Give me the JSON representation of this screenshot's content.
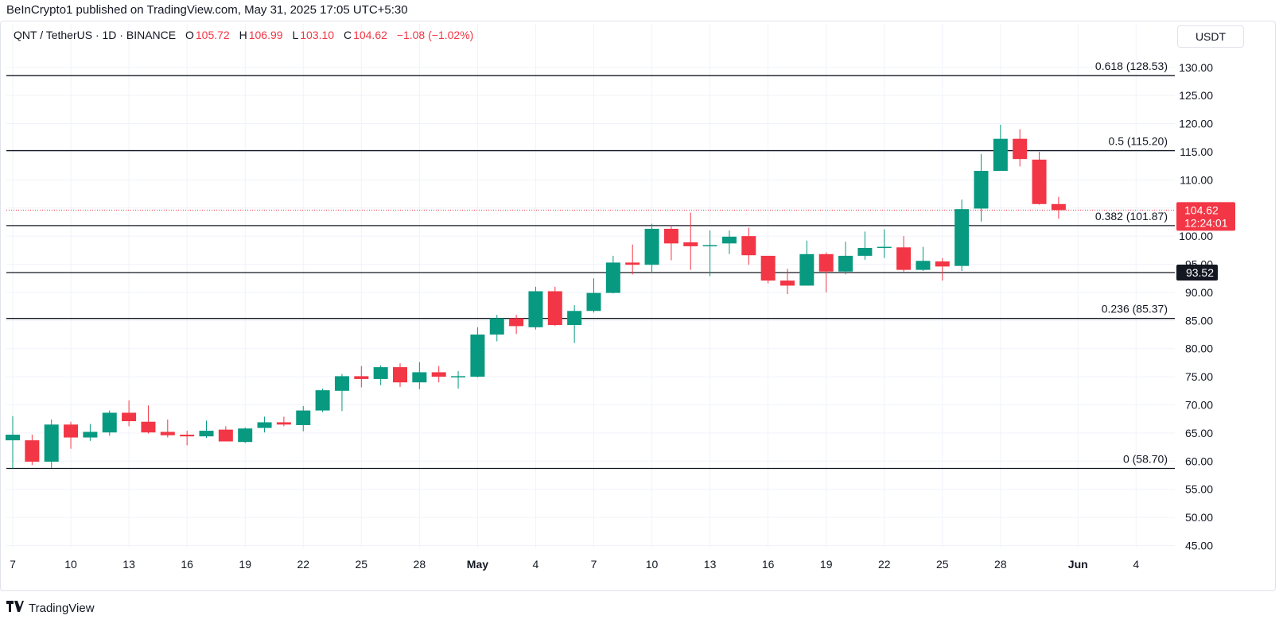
{
  "header": {
    "published_by": "BeInCrypto1 published on TradingView.com, May 31, 2025 17:05 UTC+5:30"
  },
  "symbol": {
    "title": "QNT / TetherUS · 1D · BINANCE",
    "o_label": "O",
    "o_value": "105.72",
    "h_label": "H",
    "h_value": "106.99",
    "l_label": "L",
    "l_value": "103.10",
    "c_label": "C",
    "c_value": "104.62",
    "change": "−1.08 (−1.02%)"
  },
  "currency_button": "USDT",
  "footer": {
    "logo_text": "TradingView"
  },
  "colors": {
    "up": "#089981",
    "down": "#f23645",
    "grid": "#f0f3fa",
    "level": "#131722",
    "price_tag": "#f23645",
    "dark_tag": "#131722"
  },
  "chart_data": {
    "type": "candlestick",
    "title": "QNT / TetherUS · 1D · BINANCE",
    "ylim": [
      44.5,
      133.5
    ],
    "y_ticks": [
      "130.00",
      "125.00",
      "120.00",
      "115.00",
      "110.00",
      "105.00",
      "100.00",
      "95.00",
      "90.00",
      "85.00",
      "80.00",
      "75.00",
      "70.00",
      "65.00",
      "60.00",
      "55.00",
      "50.00",
      "45.00"
    ],
    "x_ticks": [
      {
        "label": "7",
        "index": 0
      },
      {
        "label": "10",
        "index": 3
      },
      {
        "label": "13",
        "index": 6
      },
      {
        "label": "16",
        "index": 9
      },
      {
        "label": "19",
        "index": 12
      },
      {
        "label": "22",
        "index": 15
      },
      {
        "label": "25",
        "index": 18
      },
      {
        "label": "28",
        "index": 21
      },
      {
        "label": "May",
        "index": 24,
        "bold": true
      },
      {
        "label": "4",
        "index": 27
      },
      {
        "label": "7",
        "index": 30
      },
      {
        "label": "10",
        "index": 33
      },
      {
        "label": "13",
        "index": 36
      },
      {
        "label": "16",
        "index": 39
      },
      {
        "label": "19",
        "index": 42
      },
      {
        "label": "22",
        "index": 45
      },
      {
        "label": "25",
        "index": 48
      },
      {
        "label": "28",
        "index": 51
      },
      {
        "label": "Jun",
        "index": 55,
        "bold": true
      },
      {
        "label": "4",
        "index": 58
      }
    ],
    "candles": [
      {
        "o": 63.7,
        "h": 68.0,
        "l": 58.7,
        "c": 64.7
      },
      {
        "o": 63.7,
        "h": 64.7,
        "l": 59.3,
        "c": 59.9
      },
      {
        "o": 59.9,
        "h": 67.4,
        "l": 58.8,
        "c": 66.5
      },
      {
        "o": 66.5,
        "h": 67.0,
        "l": 62.2,
        "c": 64.2
      },
      {
        "o": 64.2,
        "h": 66.6,
        "l": 63.6,
        "c": 65.2
      },
      {
        "o": 65.1,
        "h": 69.0,
        "l": 64.5,
        "c": 68.6
      },
      {
        "o": 68.6,
        "h": 70.8,
        "l": 66.2,
        "c": 67.1
      },
      {
        "o": 67.0,
        "h": 69.9,
        "l": 64.9,
        "c": 65.1
      },
      {
        "o": 65.2,
        "h": 67.4,
        "l": 64.2,
        "c": 64.6
      },
      {
        "o": 64.7,
        "h": 65.4,
        "l": 62.8,
        "c": 64.4
      },
      {
        "o": 64.4,
        "h": 67.2,
        "l": 64.1,
        "c": 65.4
      },
      {
        "o": 65.6,
        "h": 66.2,
        "l": 63.5,
        "c": 63.5
      },
      {
        "o": 63.4,
        "h": 66.0,
        "l": 63.2,
        "c": 65.8
      },
      {
        "o": 65.9,
        "h": 67.9,
        "l": 65.1,
        "c": 66.9
      },
      {
        "o": 66.9,
        "h": 67.9,
        "l": 66.2,
        "c": 66.5
      },
      {
        "o": 66.4,
        "h": 69.8,
        "l": 65.3,
        "c": 69.0
      },
      {
        "o": 69.0,
        "h": 72.9,
        "l": 68.7,
        "c": 72.6
      },
      {
        "o": 72.5,
        "h": 75.5,
        "l": 68.9,
        "c": 75.1
      },
      {
        "o": 75.1,
        "h": 76.9,
        "l": 73.1,
        "c": 74.6
      },
      {
        "o": 74.6,
        "h": 77.0,
        "l": 73.5,
        "c": 76.7
      },
      {
        "o": 76.7,
        "h": 77.4,
        "l": 73.2,
        "c": 74.0
      },
      {
        "o": 74.0,
        "h": 77.6,
        "l": 72.8,
        "c": 75.8
      },
      {
        "o": 75.8,
        "h": 76.9,
        "l": 74.0,
        "c": 75.0
      },
      {
        "o": 75.0,
        "h": 76.0,
        "l": 72.9,
        "c": 75.1
      },
      {
        "o": 75.0,
        "h": 83.8,
        "l": 74.9,
        "c": 82.5
      },
      {
        "o": 82.5,
        "h": 86.0,
        "l": 81.3,
        "c": 85.4
      },
      {
        "o": 85.4,
        "h": 86.0,
        "l": 82.6,
        "c": 84.0
      },
      {
        "o": 83.8,
        "h": 91.0,
        "l": 83.4,
        "c": 90.2
      },
      {
        "o": 90.2,
        "h": 91.0,
        "l": 84.0,
        "c": 84.2
      },
      {
        "o": 84.2,
        "h": 87.7,
        "l": 81.0,
        "c": 86.7
      },
      {
        "o": 86.7,
        "h": 92.5,
        "l": 86.4,
        "c": 89.9
      },
      {
        "o": 89.9,
        "h": 96.5,
        "l": 89.8,
        "c": 95.3
      },
      {
        "o": 95.3,
        "h": 98.5,
        "l": 93.2,
        "c": 94.9
      },
      {
        "o": 94.9,
        "h": 102.2,
        "l": 93.4,
        "c": 101.3
      },
      {
        "o": 101.3,
        "h": 101.9,
        "l": 95.7,
        "c": 98.7
      },
      {
        "o": 98.9,
        "h": 104.2,
        "l": 94.0,
        "c": 98.2
      },
      {
        "o": 98.2,
        "h": 101.0,
        "l": 92.9,
        "c": 98.4
      },
      {
        "o": 98.7,
        "h": 101.0,
        "l": 96.8,
        "c": 99.9
      },
      {
        "o": 100.0,
        "h": 101.5,
        "l": 94.9,
        "c": 96.6
      },
      {
        "o": 96.5,
        "h": 96.5,
        "l": 91.6,
        "c": 92.1
      },
      {
        "o": 92.1,
        "h": 94.2,
        "l": 89.7,
        "c": 91.2
      },
      {
        "o": 91.2,
        "h": 99.2,
        "l": 91.2,
        "c": 96.8
      },
      {
        "o": 96.8,
        "h": 97.1,
        "l": 90.0,
        "c": 93.7
      },
      {
        "o": 93.7,
        "h": 99.0,
        "l": 93.2,
        "c": 96.5
      },
      {
        "o": 96.5,
        "h": 100.8,
        "l": 95.8,
        "c": 97.9
      },
      {
        "o": 98.0,
        "h": 101.2,
        "l": 96.1,
        "c": 98.1
      },
      {
        "o": 98.0,
        "h": 100.0,
        "l": 93.7,
        "c": 94.0
      },
      {
        "o": 94.0,
        "h": 98.1,
        "l": 93.8,
        "c": 95.6
      },
      {
        "o": 95.5,
        "h": 96.1,
        "l": 92.1,
        "c": 94.6
      },
      {
        "o": 94.7,
        "h": 106.5,
        "l": 93.8,
        "c": 104.8
      },
      {
        "o": 104.9,
        "h": 114.6,
        "l": 102.6,
        "c": 111.6
      },
      {
        "o": 111.6,
        "h": 119.8,
        "l": 111.6,
        "c": 117.3
      },
      {
        "o": 117.3,
        "h": 119.0,
        "l": 112.4,
        "c": 113.7
      },
      {
        "o": 113.6,
        "h": 115.0,
        "l": 105.6,
        "c": 105.7
      },
      {
        "o": 105.7,
        "h": 106.99,
        "l": 103.1,
        "c": 104.62
      }
    ],
    "fib_levels": [
      {
        "label": "0.618 (128.53)",
        "value": 128.53
      },
      {
        "label": "0.5 (115.20)",
        "value": 115.2
      },
      {
        "label": "0.382 (101.87)",
        "value": 101.87
      },
      {
        "label": "0.236 (85.37)",
        "value": 85.37
      },
      {
        "label": "0 (58.70)",
        "value": 58.7
      }
    ],
    "extra_line": {
      "value": 93.52,
      "tag": "93.52"
    },
    "last_price": {
      "value": 104.62,
      "tag": "104.62",
      "countdown": "12:24:01"
    },
    "grid": true
  }
}
